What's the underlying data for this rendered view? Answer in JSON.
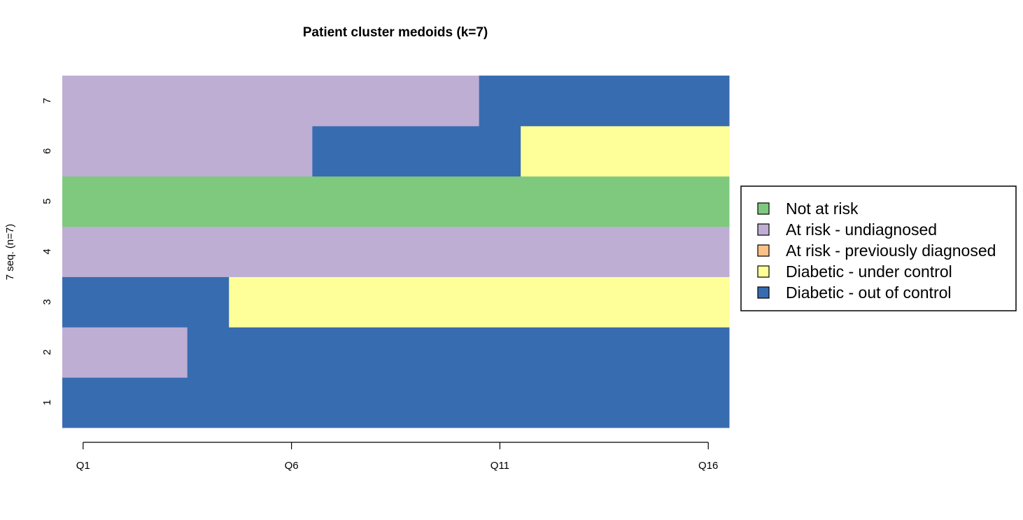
{
  "chart_data": {
    "type": "heatmap",
    "title": "Patient cluster medoids (k=7)",
    "ylabel": "7 seq. (n=7)",
    "x_tick_labels": [
      "Q1",
      "Q6",
      "Q11",
      "Q16"
    ],
    "y_tick_labels": [
      "1",
      "2",
      "3",
      "4",
      "5",
      "6",
      "7"
    ],
    "states": [
      {
        "name": "Not at risk",
        "color": "#7fc97f"
      },
      {
        "name": "At risk - undiagnosed",
        "color": "#beaed4"
      },
      {
        "name": "At risk - previously diagnosed",
        "color": "#fdc086"
      },
      {
        "name": "Diabetic - under control",
        "color": "#ffff99"
      },
      {
        "name": "Diabetic - out of control",
        "color": "#386cb0"
      }
    ],
    "sequences": [
      {
        "id": "1",
        "states": [
          4,
          4,
          4,
          4,
          4,
          4,
          4,
          4,
          4,
          4,
          4,
          4,
          4,
          4,
          4,
          4
        ]
      },
      {
        "id": "2",
        "states": [
          1,
          1,
          1,
          4,
          4,
          4,
          4,
          4,
          4,
          4,
          4,
          4,
          4,
          4,
          4,
          4
        ]
      },
      {
        "id": "3",
        "states": [
          4,
          4,
          4,
          4,
          3,
          3,
          3,
          3,
          3,
          3,
          3,
          3,
          3,
          3,
          3,
          3
        ]
      },
      {
        "id": "4",
        "states": [
          1,
          1,
          1,
          1,
          1,
          1,
          1,
          1,
          1,
          1,
          1,
          1,
          1,
          1,
          1,
          1
        ]
      },
      {
        "id": "5",
        "states": [
          0,
          0,
          0,
          0,
          0,
          0,
          0,
          0,
          0,
          0,
          0,
          0,
          0,
          0,
          0,
          0
        ]
      },
      {
        "id": "6",
        "states": [
          1,
          1,
          1,
          1,
          1,
          1,
          4,
          4,
          4,
          4,
          4,
          3,
          3,
          3,
          3,
          3
        ]
      },
      {
        "id": "7",
        "states": [
          1,
          1,
          1,
          1,
          1,
          1,
          1,
          1,
          1,
          1,
          4,
          4,
          4,
          4,
          4,
          4
        ]
      }
    ],
    "legend_position": "right"
  }
}
